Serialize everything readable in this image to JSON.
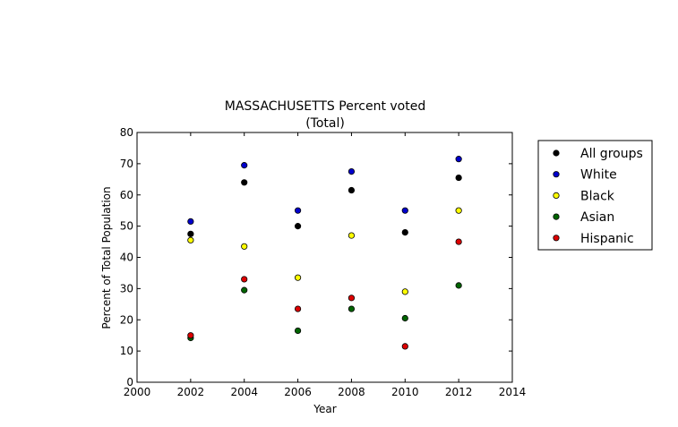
{
  "chart_data": {
    "type": "scatter",
    "title": "MASSACHUSETTS Percent voted",
    "subtitle": "(Total)",
    "xlabel": "Year",
    "ylabel": "Percent of Total Population",
    "xlim": [
      2000,
      2014
    ],
    "ylim": [
      0,
      80
    ],
    "xticks": [
      2000,
      2002,
      2004,
      2006,
      2008,
      2010,
      2012,
      2014
    ],
    "yticks": [
      0,
      10,
      20,
      30,
      40,
      50,
      60,
      70,
      80
    ],
    "grid": false,
    "legend_position": "outside-right",
    "x": [
      2002,
      2004,
      2006,
      2008,
      2010,
      2012
    ],
    "series": [
      {
        "name": "All groups",
        "color": "#000000",
        "values": [
          47.5,
          64,
          50,
          61.5,
          48,
          65.5
        ]
      },
      {
        "name": "White",
        "color": "#0000cc",
        "values": [
          51.5,
          69.5,
          55,
          67.5,
          55,
          71.5
        ]
      },
      {
        "name": "Black",
        "color": "#ffff00",
        "values": [
          45.5,
          43.5,
          33.5,
          47,
          29,
          55
        ]
      },
      {
        "name": "Asian",
        "color": "#006400",
        "values": [
          14.2,
          29.5,
          16.5,
          23.5,
          20.5,
          31
        ]
      },
      {
        "name": "Hispanic",
        "color": "#dd0000",
        "values": [
          15,
          33,
          23.5,
          27,
          11.5,
          45
        ]
      }
    ]
  }
}
